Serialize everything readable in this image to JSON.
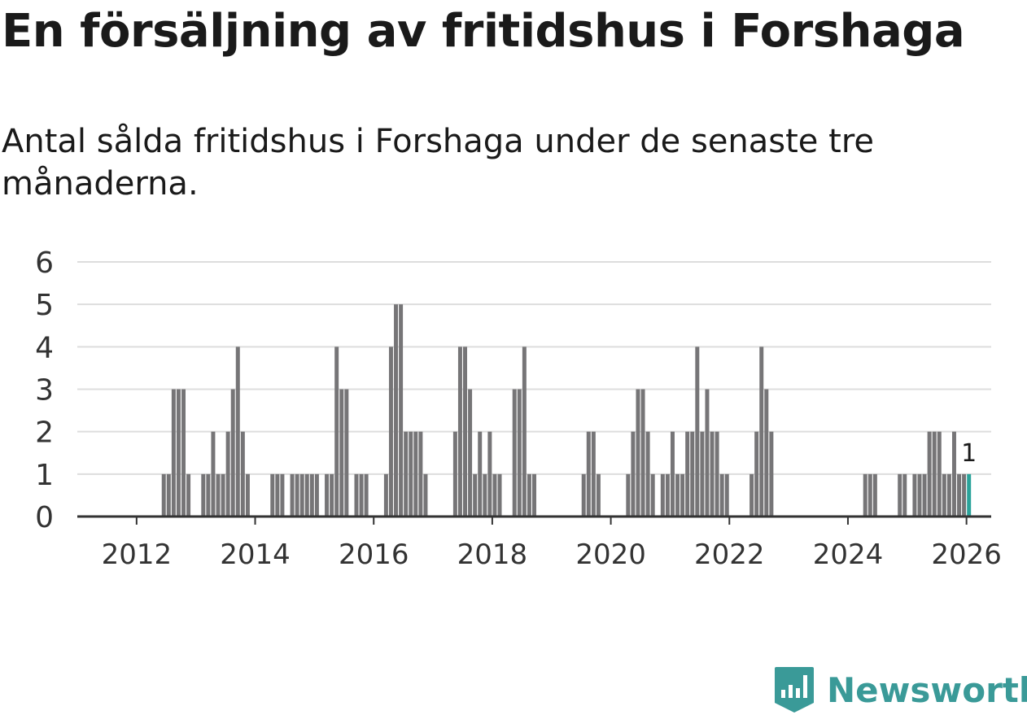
{
  "header": {
    "title": "En försäljning av fritidshus i Forshaga",
    "subtitle": "Antal sålda fritidshus i Forshaga under de senaste tre månaderna."
  },
  "brand": {
    "name": "Newsworthy",
    "icon": "newsworthy-logo-icon"
  },
  "colors": {
    "bar": "#767577",
    "highlight": "#2aa39a",
    "grid": "#dddddd",
    "axis": "#333333",
    "brand": "#3a9a98"
  },
  "chart_data": {
    "type": "bar",
    "title": "En försäljning av fritidshus i Forshaga",
    "xlabel": "",
    "ylabel": "",
    "ylim": [
      0,
      6
    ],
    "yticks": [
      0,
      1,
      2,
      3,
      4,
      5,
      6
    ],
    "xlim": [
      "2011-01",
      "2026-06"
    ],
    "xticks": [
      "2012",
      "2014",
      "2016",
      "2018",
      "2020",
      "2022",
      "2024",
      "2026"
    ],
    "grid": true,
    "categories": [
      "2012-06",
      "2012-07",
      "2012-08",
      "2012-09",
      "2012-10",
      "2012-11",
      "2013-02",
      "2013-03",
      "2013-04",
      "2013-05",
      "2013-06",
      "2013-07",
      "2013-08",
      "2013-09",
      "2013-10",
      "2013-11",
      "2014-04",
      "2014-05",
      "2014-06",
      "2014-08",
      "2014-09",
      "2014-10",
      "2014-11",
      "2014-12",
      "2015-01",
      "2015-03",
      "2015-04",
      "2015-05",
      "2015-06",
      "2015-07",
      "2015-09",
      "2015-10",
      "2015-11",
      "2016-03",
      "2016-04",
      "2016-05",
      "2016-06",
      "2016-07",
      "2016-08",
      "2016-09",
      "2016-10",
      "2016-11",
      "2017-05",
      "2017-06",
      "2017-07",
      "2017-08",
      "2017-09",
      "2017-10",
      "2017-11",
      "2017-12",
      "2018-01",
      "2018-02",
      "2018-05",
      "2018-06",
      "2018-07",
      "2018-08",
      "2018-09",
      "2019-07",
      "2019-08",
      "2019-09",
      "2019-10",
      "2020-04",
      "2020-05",
      "2020-06",
      "2020-07",
      "2020-08",
      "2020-09",
      "2020-11",
      "2020-12",
      "2021-01",
      "2021-02",
      "2021-03",
      "2021-04",
      "2021-05",
      "2021-06",
      "2021-07",
      "2021-08",
      "2021-09",
      "2021-10",
      "2021-11",
      "2021-12",
      "2022-05",
      "2022-06",
      "2022-07",
      "2022-08",
      "2022-09",
      "2024-04",
      "2024-05",
      "2024-06",
      "2024-11",
      "2024-12",
      "2025-02",
      "2025-03",
      "2025-04",
      "2025-05",
      "2025-06",
      "2025-07",
      "2025-08",
      "2025-09",
      "2025-10",
      "2025-11",
      "2025-12",
      "2026-01"
    ],
    "values": [
      1,
      1,
      3,
      3,
      3,
      1,
      1,
      1,
      2,
      1,
      1,
      2,
      3,
      4,
      2,
      1,
      1,
      1,
      1,
      1,
      1,
      1,
      1,
      1,
      1,
      1,
      1,
      4,
      3,
      3,
      1,
      1,
      1,
      1,
      4,
      5,
      5,
      2,
      2,
      2,
      2,
      1,
      2,
      4,
      4,
      3,
      1,
      2,
      1,
      2,
      1,
      1,
      3,
      3,
      4,
      1,
      1,
      1,
      2,
      2,
      1,
      1,
      2,
      3,
      3,
      2,
      1,
      1,
      1,
      2,
      1,
      1,
      2,
      2,
      4,
      2,
      3,
      2,
      2,
      1,
      1,
      1,
      2,
      4,
      3,
      2,
      1,
      1,
      1,
      1,
      1,
      1,
      1,
      1,
      2,
      2,
      2,
      1,
      1,
      2,
      1,
      1,
      1
    ],
    "highlight": {
      "category": "2026-01",
      "value": 1,
      "label": "1"
    }
  }
}
